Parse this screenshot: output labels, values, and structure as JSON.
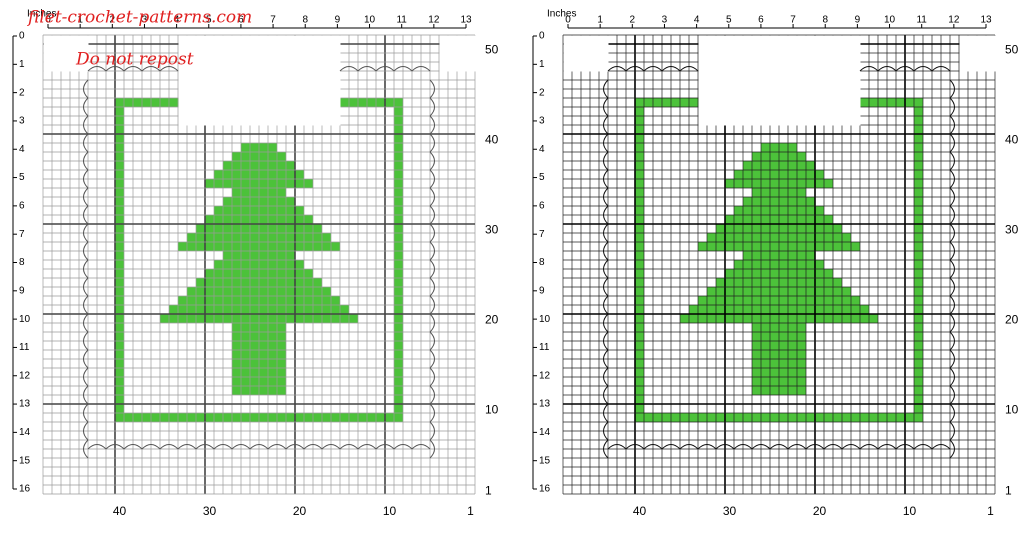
{
  "watermark": {
    "site": "filet-crochet-patterns.com",
    "notice": "Do not repost"
  },
  "panels": [
    {
      "unit_label": "Inches",
      "inch_ticks": [
        0,
        1,
        2,
        3,
        4,
        5,
        6,
        7,
        8,
        9,
        10,
        11,
        12,
        13
      ],
      "inch_rows": [
        0,
        1,
        2,
        3,
        4,
        5,
        6,
        7,
        8,
        9,
        10,
        11,
        12,
        13,
        14,
        15,
        16
      ],
      "row_labels": [
        50,
        40,
        30,
        20,
        10,
        1
      ],
      "column_labels": [
        40,
        30,
        20,
        10,
        1
      ]
    },
    {
      "unit_label": "Inches",
      "inch_ticks": [
        0,
        1,
        2,
        3,
        4,
        5,
        6,
        7,
        8,
        9,
        10,
        11,
        12,
        13
      ],
      "inch_rows": [
        0,
        1,
        2,
        3,
        4,
        5,
        6,
        7,
        8,
        9,
        10,
        11,
        12,
        13,
        14,
        15,
        16
      ],
      "row_labels": [
        50,
        40,
        30,
        20,
        10,
        1
      ],
      "column_labels": [
        40,
        30,
        20,
        10,
        1
      ]
    }
  ]
}
